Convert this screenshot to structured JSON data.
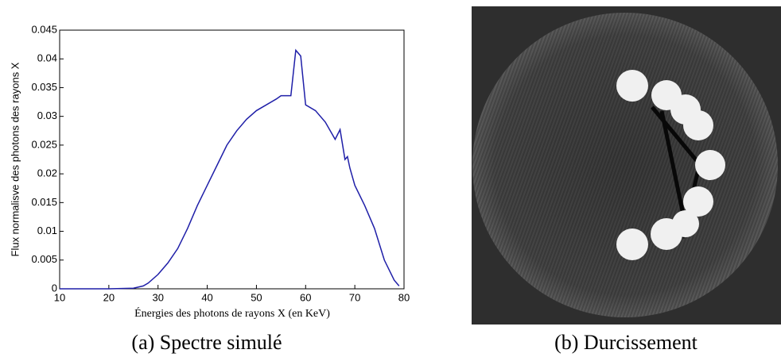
{
  "chart_data": {
    "type": "line",
    "xlabel": "Énergies des photons de rayons X (en KeV)",
    "ylabel": "Flux normalisve des photons des rayons X",
    "x": [
      10,
      15,
      20,
      25,
      27,
      28,
      30,
      32,
      34,
      36,
      38,
      40,
      42,
      44,
      46,
      48,
      50,
      52,
      54,
      55,
      57,
      58,
      59,
      60,
      62,
      64,
      66,
      67,
      68,
      68.5,
      69,
      70,
      72,
      74,
      76,
      78,
      79
    ],
    "values": [
      0,
      0,
      0,
      0.0001,
      0.0005,
      0.001,
      0.0025,
      0.0045,
      0.007,
      0.0105,
      0.0145,
      0.018,
      0.0215,
      0.025,
      0.0275,
      0.0295,
      0.031,
      0.032,
      0.033,
      0.0336,
      0.0336,
      0.0415,
      0.0405,
      0.032,
      0.031,
      0.029,
      0.026,
      0.0277,
      0.0225,
      0.023,
      0.021,
      0.018,
      0.0145,
      0.0105,
      0.005,
      0.0015,
      0.0005
    ],
    "color": "#1f1fa8",
    "xlim": [
      10,
      80
    ],
    "xticks": [
      10,
      20,
      30,
      40,
      50,
      60,
      70,
      80
    ],
    "ylim": [
      0,
      0.045
    ],
    "yticks": [
      0,
      0.005,
      0.01,
      0.015,
      0.02,
      0.025,
      0.03,
      0.035,
      0.04,
      0.045
    ]
  },
  "figure": {
    "captions": [
      "(a) Spectre simulé",
      "(b) Durcissement"
    ]
  }
}
